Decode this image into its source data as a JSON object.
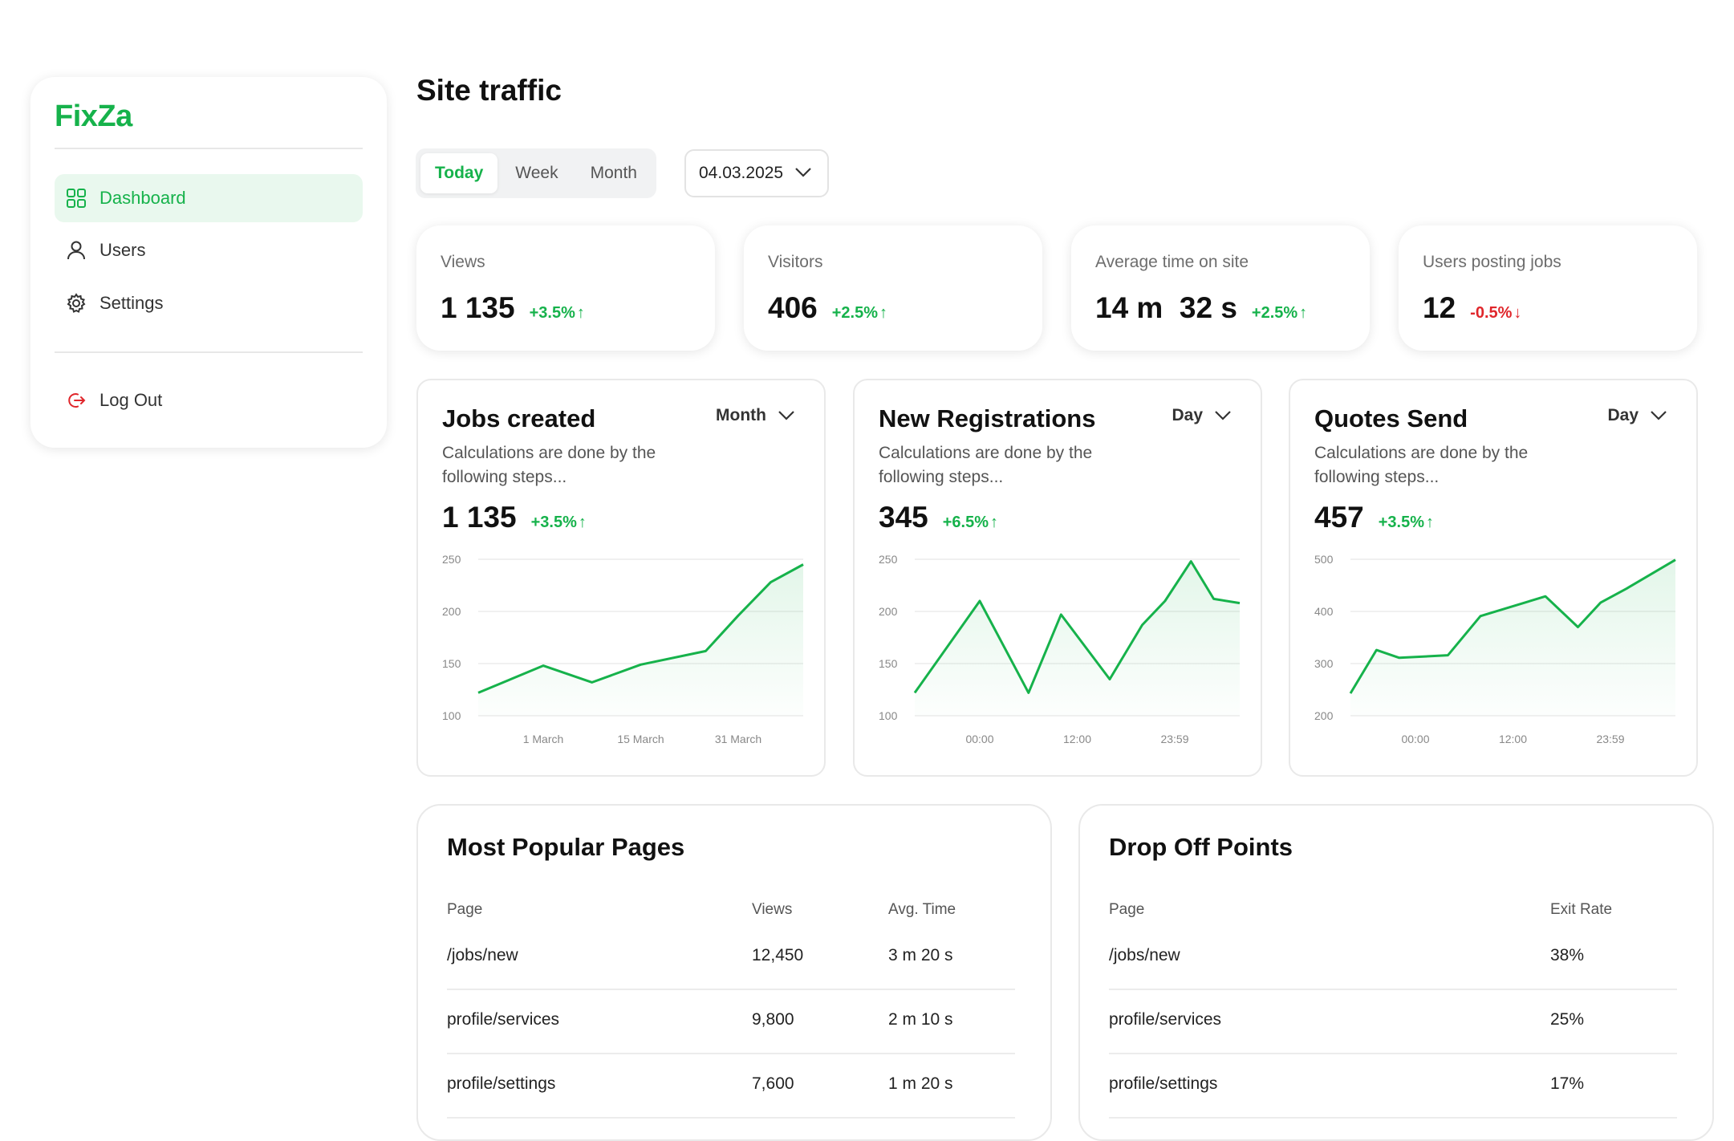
{
  "brand": {
    "name": "FixZa",
    "accent": "#16b24b",
    "danger": "#e0262b"
  },
  "sidebar": {
    "items": [
      {
        "label": "Dashboard",
        "icon": "dashboard-icon",
        "active": true
      },
      {
        "label": "Users",
        "icon": "user-icon"
      },
      {
        "label": "Settings",
        "icon": "gear-icon"
      }
    ],
    "logout": {
      "label": "Log Out",
      "icon": "logout-icon"
    }
  },
  "header": {
    "title": "Site traffic",
    "tabs": [
      "Today",
      "Week",
      "Month"
    ],
    "active_tab": "Today",
    "date": "04.03.2025"
  },
  "stats": [
    {
      "label": "Views",
      "value": "1 135",
      "change": "+3.5%",
      "direction": "up"
    },
    {
      "label": "Visitors",
      "value": "406",
      "change": "+2.5%",
      "direction": "up"
    },
    {
      "label": "Average time on site",
      "value": "14 m  32 s",
      "change": "+2.5%",
      "direction": "up"
    },
    {
      "label": "Users posting jobs",
      "value": "12",
      "change": "-0.5%",
      "direction": "down"
    }
  ],
  "charts": [
    {
      "title": "Jobs created",
      "period": "Month",
      "desc": "Calculations are done by the following steps...",
      "value": "1 135",
      "change": "+3.5%"
    },
    {
      "title": "New Registrations",
      "period": "Day",
      "desc": "Calculations are done by the following steps...",
      "value": "345",
      "change": "+6.5%"
    },
    {
      "title": "Quotes Send",
      "period": "Day",
      "desc": "Calculations are done by the following steps...",
      "value": "457",
      "change": "+3.5%"
    }
  ],
  "chart_data": [
    {
      "type": "area",
      "title": "Jobs created",
      "x": [
        0,
        0.2,
        0.35,
        0.5,
        0.7,
        0.8,
        0.9,
        1.0
      ],
      "y": [
        122,
        148,
        132,
        149,
        162,
        196,
        228,
        245
      ],
      "ylim": [
        100,
        250
      ],
      "yticks": [
        250,
        200,
        150,
        100
      ],
      "xticks": [
        {
          "x": 0.2,
          "label": "1 March"
        },
        {
          "x": 0.5,
          "label": "15 March"
        },
        {
          "x": 0.8,
          "label": "31 March"
        }
      ]
    },
    {
      "type": "area",
      "title": "New Registrations",
      "x": [
        0,
        0.2,
        0.35,
        0.45,
        0.6,
        0.7,
        0.77,
        0.85,
        0.92,
        1.0
      ],
      "y": [
        122,
        210,
        122,
        197,
        135,
        187,
        210,
        248,
        212,
        208
      ],
      "ylim": [
        100,
        250
      ],
      "yticks": [
        250,
        200,
        150,
        100
      ],
      "xticks": [
        {
          "x": 0.2,
          "label": "00:00"
        },
        {
          "x": 0.5,
          "label": "12:00"
        },
        {
          "x": 0.8,
          "label": "23:59"
        }
      ]
    },
    {
      "type": "area",
      "title": "Quotes Send",
      "x": [
        0,
        0.08,
        0.15,
        0.3,
        0.4,
        0.6,
        0.7,
        0.77,
        0.85,
        1.0
      ],
      "y": [
        243,
        326,
        311,
        316,
        391,
        429,
        370,
        417,
        444,
        499
      ],
      "ylim": [
        200,
        500
      ],
      "yticks": [
        500,
        400,
        300,
        200
      ],
      "xticks": [
        {
          "x": 0.2,
          "label": "00:00"
        },
        {
          "x": 0.5,
          "label": "12:00"
        },
        {
          "x": 0.8,
          "label": "23:59"
        }
      ]
    }
  ],
  "popular": {
    "title": "Most Popular Pages",
    "columns": [
      "Page",
      "Views",
      "Avg. Time"
    ],
    "rows": [
      [
        "/jobs/new",
        "12,450",
        "3 m 20 s"
      ],
      [
        "profile/services",
        "9,800",
        "2 m 10 s"
      ],
      [
        "profile/settings",
        "7,600",
        "1 m 20 s"
      ]
    ]
  },
  "dropoff": {
    "title": "Drop Off Points",
    "columns": [
      "Page",
      "Exit Rate"
    ],
    "rows": [
      [
        "/jobs/new",
        "38%"
      ],
      [
        "profile/services",
        "25%"
      ],
      [
        "profile/settings",
        "17%"
      ]
    ]
  }
}
